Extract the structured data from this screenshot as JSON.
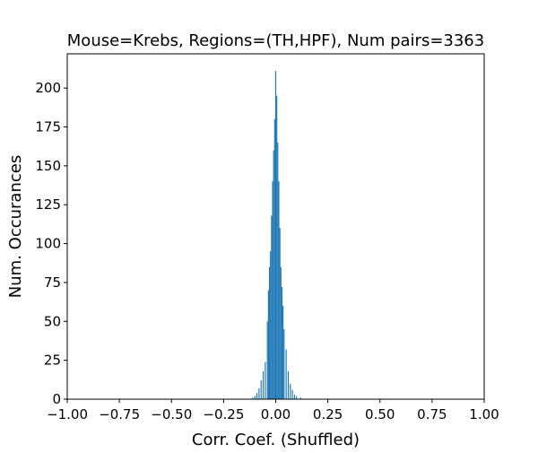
{
  "chart_data": {
    "type": "bar",
    "title": "Mouse=Krebs, Regions=(TH,HPF), Num pairs=3363",
    "xlabel": "Corr. Coef. (Shuffled)",
    "ylabel": "Num. Occurances",
    "xlim": [
      -1.0,
      1.0
    ],
    "ylim": [
      0,
      222
    ],
    "xticks": [
      -1.0,
      -0.75,
      -0.5,
      -0.25,
      0.0,
      0.25,
      0.5,
      0.75,
      1.0
    ],
    "xtick_labels": [
      "−1.00",
      "−0.75",
      "−0.50",
      "−0.25",
      "0.00",
      "0.25",
      "0.50",
      "0.75",
      "1.00"
    ],
    "yticks": [
      0,
      25,
      50,
      75,
      100,
      125,
      150,
      175,
      200
    ],
    "ytick_labels": [
      "0",
      "25",
      "50",
      "75",
      "100",
      "125",
      "150",
      "175",
      "200"
    ],
    "grid": false,
    "bar_color": "#1f77b4",
    "bins": [
      {
        "x": -0.11,
        "y": 1
      },
      {
        "x": -0.1,
        "y": 2
      },
      {
        "x": -0.09,
        "y": 4
      },
      {
        "x": -0.08,
        "y": 7
      },
      {
        "x": -0.07,
        "y": 12
      },
      {
        "x": -0.06,
        "y": 18
      },
      {
        "x": -0.05,
        "y": 24
      },
      {
        "x": -0.04,
        "y": 50
      },
      {
        "x": -0.035,
        "y": 70
      },
      {
        "x": -0.03,
        "y": 85
      },
      {
        "x": -0.025,
        "y": 95
      },
      {
        "x": -0.02,
        "y": 118
      },
      {
        "x": -0.015,
        "y": 140
      },
      {
        "x": -0.01,
        "y": 160
      },
      {
        "x": -0.005,
        "y": 180
      },
      {
        "x": 0.0,
        "y": 211
      },
      {
        "x": 0.005,
        "y": 195
      },
      {
        "x": 0.01,
        "y": 165
      },
      {
        "x": 0.015,
        "y": 140
      },
      {
        "x": 0.02,
        "y": 110
      },
      {
        "x": 0.025,
        "y": 85
      },
      {
        "x": 0.03,
        "y": 72
      },
      {
        "x": 0.035,
        "y": 60
      },
      {
        "x": 0.04,
        "y": 45
      },
      {
        "x": 0.05,
        "y": 32
      },
      {
        "x": 0.06,
        "y": 18
      },
      {
        "x": 0.07,
        "y": 10
      },
      {
        "x": 0.08,
        "y": 6
      },
      {
        "x": 0.09,
        "y": 3
      },
      {
        "x": 0.1,
        "y": 2
      },
      {
        "x": 0.12,
        "y": 1
      }
    ]
  }
}
